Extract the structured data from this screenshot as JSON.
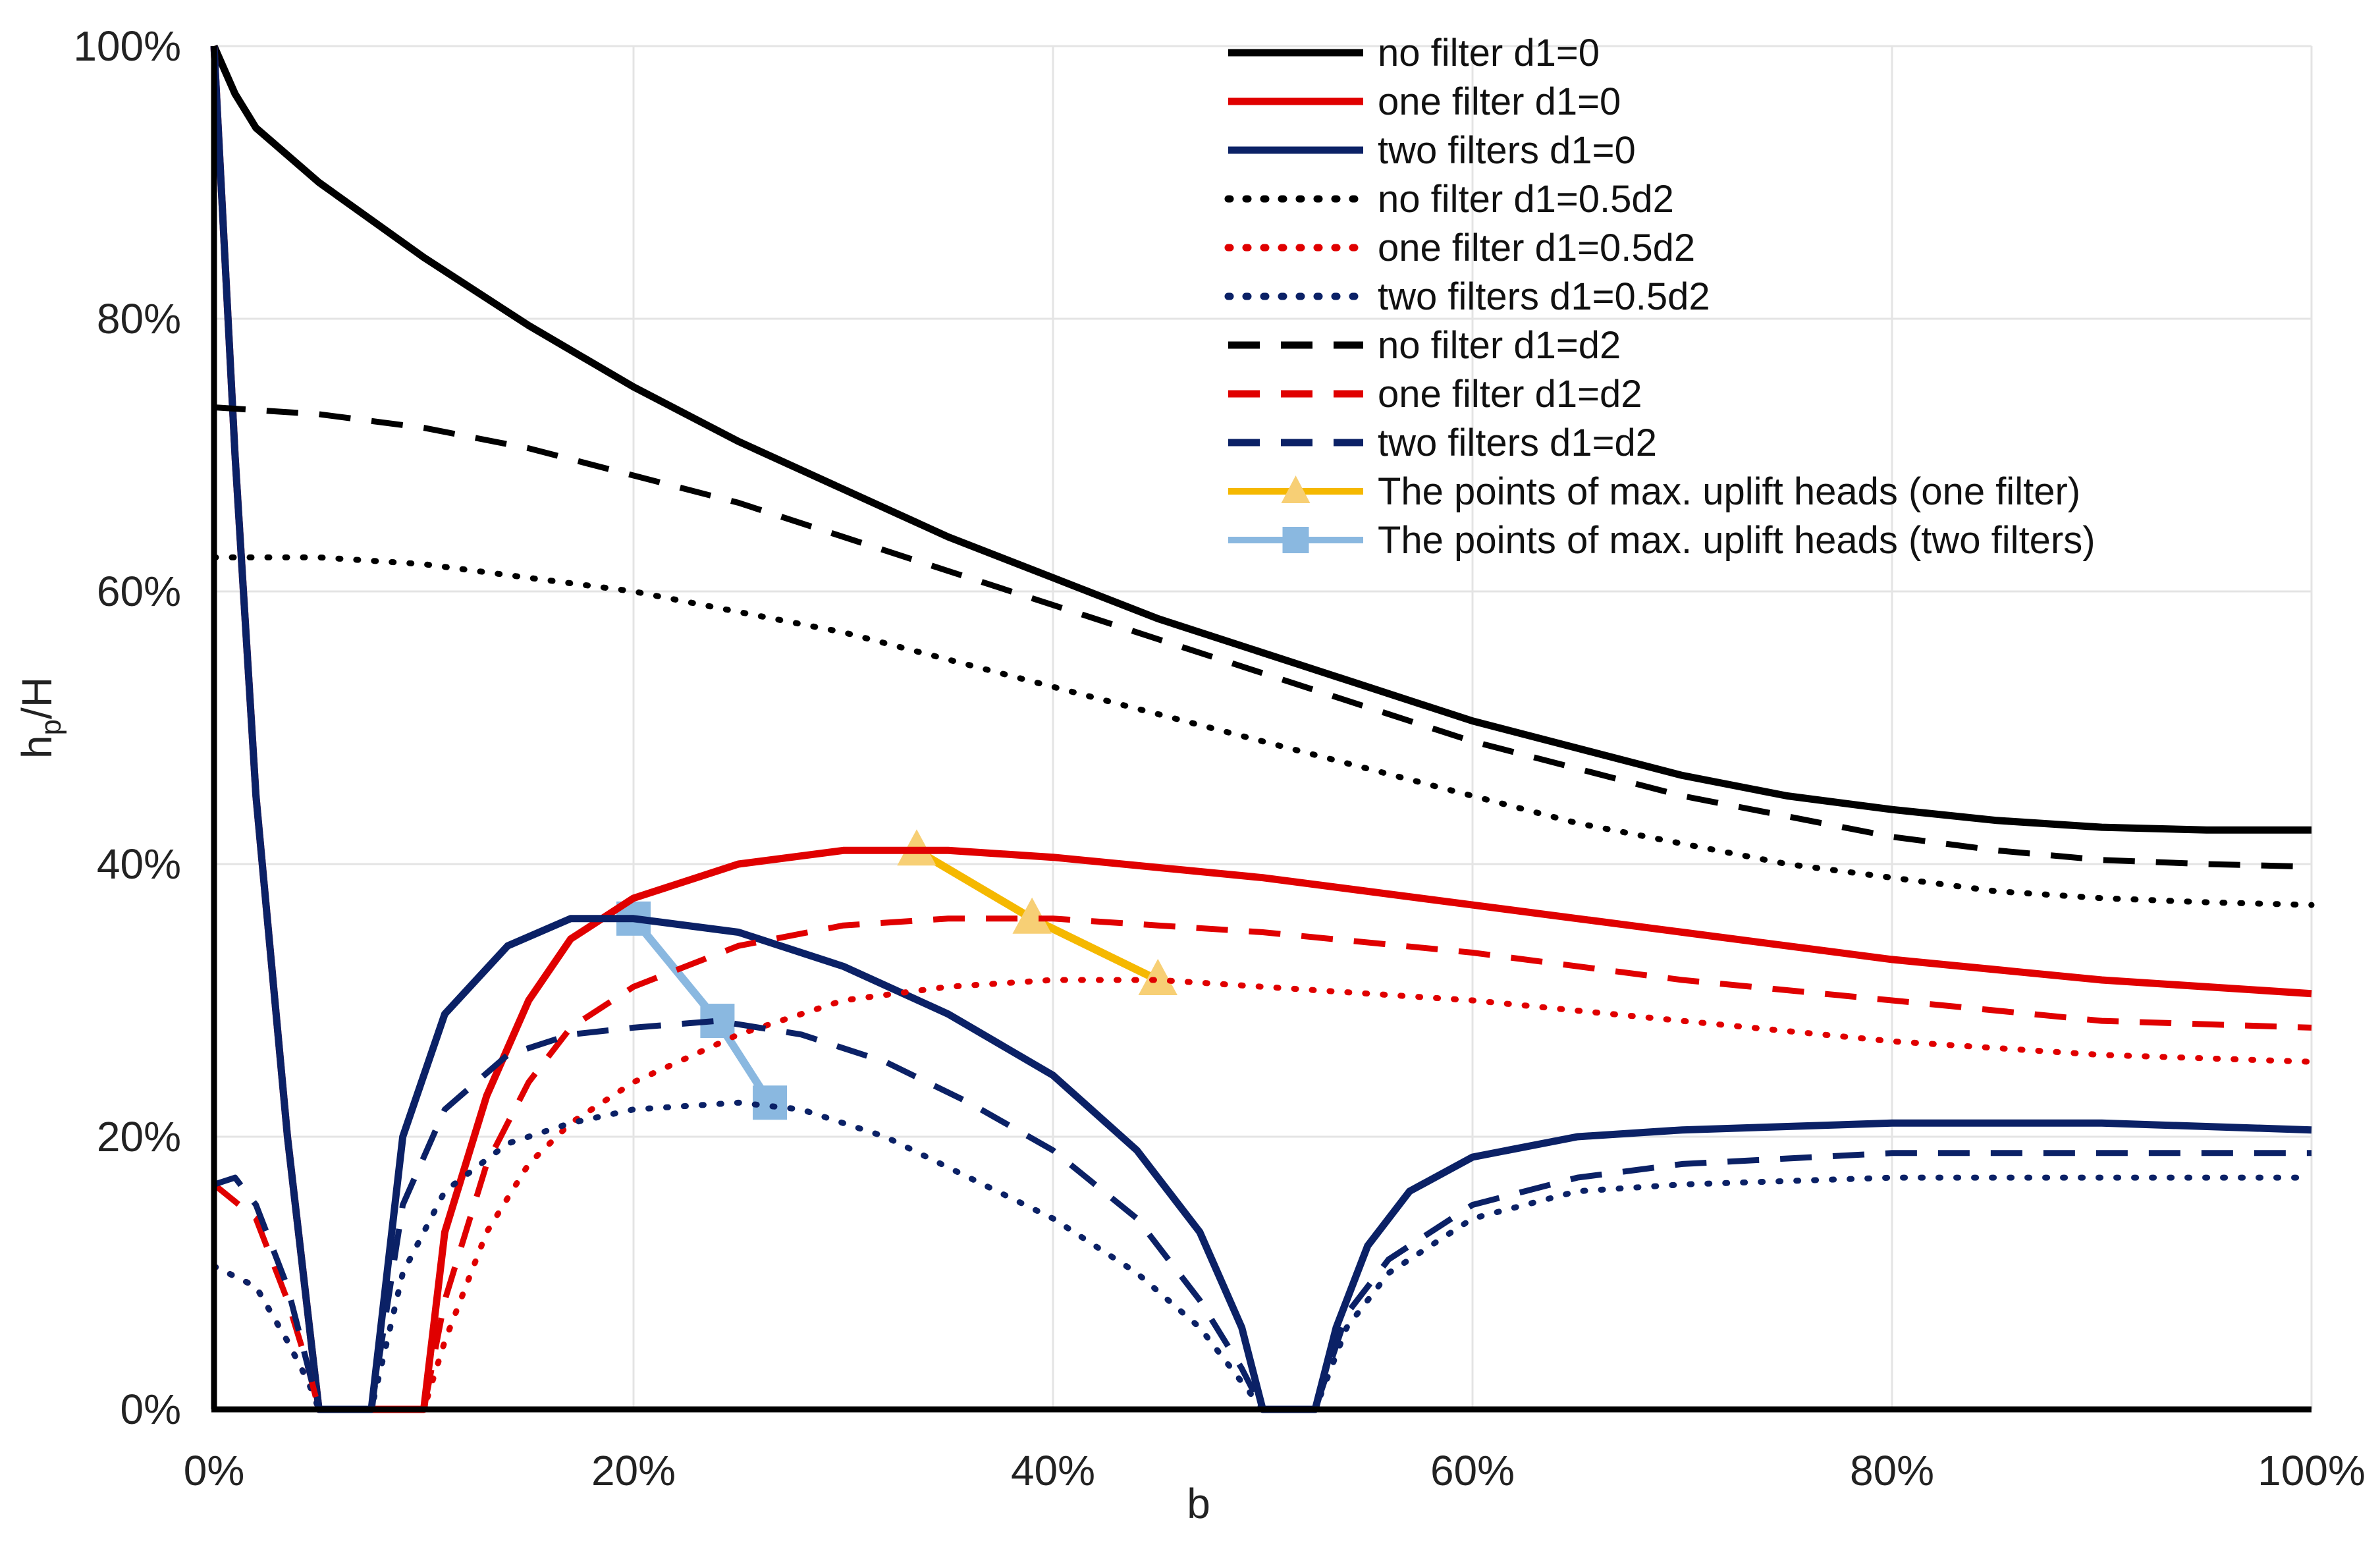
{
  "chart_data": {
    "type": "line",
    "title": "",
    "xlabel": "b",
    "ylabel": "hp/H",
    "ylabel_main": "h",
    "ylabel_sub": "p",
    "ylabel_tail": "/H",
    "xlim": [
      0,
      1
    ],
    "ylim": [
      0,
      1
    ],
    "x_ticks": [
      0,
      0.2,
      0.4,
      0.6,
      0.8,
      1.0
    ],
    "x_tick_labels": [
      "0%",
      "20%",
      "40%",
      "60%",
      "80%",
      "100%"
    ],
    "y_ticks": [
      0,
      0.2,
      0.4,
      0.6,
      0.8,
      1.0
    ],
    "y_tick_labels": [
      "0%",
      "20%",
      "40%",
      "60%",
      "80%",
      "100%"
    ],
    "grid": "horizontal and vertical, light",
    "legend_position": "top-right",
    "series": [
      {
        "name": "no filter d1=0",
        "color": "#000000",
        "style": "solid",
        "marker": "none",
        "x": [
          0,
          0.01,
          0.02,
          0.05,
          0.1,
          0.15,
          0.2,
          0.25,
          0.3,
          0.35,
          0.4,
          0.45,
          0.5,
          0.55,
          0.6,
          0.65,
          0.7,
          0.75,
          0.8,
          0.85,
          0.9,
          0.95,
          1.0
        ],
        "y": [
          1.0,
          0.965,
          0.94,
          0.9,
          0.845,
          0.795,
          0.75,
          0.71,
          0.675,
          0.64,
          0.61,
          0.58,
          0.555,
          0.53,
          0.505,
          0.485,
          0.465,
          0.45,
          0.44,
          0.432,
          0.427,
          0.425,
          0.425
        ]
      },
      {
        "name": "one filter d1=0",
        "color": "#e00000",
        "style": "solid",
        "marker": "none",
        "x": [
          0,
          0.01,
          0.02,
          0.035,
          0.05,
          0.06,
          0.08,
          0.1,
          0.11,
          0.13,
          0.15,
          0.17,
          0.2,
          0.25,
          0.3,
          0.35,
          0.4,
          0.5,
          0.6,
          0.7,
          0.8,
          0.9,
          1.0
        ],
        "y": [
          1.0,
          0.7,
          0.45,
          0.2,
          0.0,
          0.0,
          0.0,
          0.0,
          0.13,
          0.23,
          0.3,
          0.345,
          0.375,
          0.4,
          0.41,
          0.41,
          0.405,
          0.39,
          0.37,
          0.35,
          0.33,
          0.315,
          0.305
        ]
      },
      {
        "name": "two filters d1=0",
        "color": "#0b2166",
        "style": "solid",
        "marker": "none",
        "x": [
          0,
          0.01,
          0.02,
          0.035,
          0.05,
          0.07,
          0.075,
          0.09,
          0.11,
          0.14,
          0.17,
          0.2,
          0.25,
          0.3,
          0.35,
          0.4,
          0.44,
          0.47,
          0.49,
          0.5,
          0.525,
          0.535,
          0.55,
          0.57,
          0.6,
          0.65,
          0.7,
          0.8,
          0.9,
          1.0
        ],
        "y": [
          1.0,
          0.7,
          0.45,
          0.2,
          0.0,
          0.0,
          0.0,
          0.2,
          0.29,
          0.34,
          0.36,
          0.36,
          0.35,
          0.325,
          0.29,
          0.245,
          0.19,
          0.13,
          0.06,
          0.0,
          0.0,
          0.06,
          0.12,
          0.16,
          0.185,
          0.2,
          0.205,
          0.21,
          0.21,
          0.205
        ]
      },
      {
        "name": "no filter d1=0.5d2",
        "color": "#000000",
        "style": "dotted",
        "marker": "none",
        "x": [
          0,
          0.05,
          0.1,
          0.15,
          0.2,
          0.25,
          0.3,
          0.35,
          0.4,
          0.45,
          0.5,
          0.55,
          0.6,
          0.65,
          0.7,
          0.75,
          0.8,
          0.85,
          0.9,
          0.95,
          1.0
        ],
        "y": [
          0.625,
          0.625,
          0.62,
          0.61,
          0.6,
          0.585,
          0.57,
          0.55,
          0.53,
          0.51,
          0.49,
          0.47,
          0.45,
          0.43,
          0.415,
          0.4,
          0.39,
          0.38,
          0.375,
          0.372,
          0.37
        ]
      },
      {
        "name": "one filter d1=0.5d2",
        "color": "#e00000",
        "style": "dotted",
        "marker": "none",
        "x": [
          0,
          0.02,
          0.035,
          0.045,
          0.05,
          0.1,
          0.11,
          0.13,
          0.15,
          0.17,
          0.2,
          0.25,
          0.3,
          0.35,
          0.4,
          0.45,
          0.5,
          0.6,
          0.7,
          0.8,
          0.9,
          1.0
        ],
        "y": [
          0.105,
          0.09,
          0.05,
          0.02,
          0.0,
          0.0,
          0.05,
          0.13,
          0.18,
          0.21,
          0.24,
          0.275,
          0.3,
          0.31,
          0.315,
          0.315,
          0.31,
          0.3,
          0.285,
          0.27,
          0.26,
          0.255
        ]
      },
      {
        "name": "two filters d1=0.5d2",
        "color": "#0b2166",
        "style": "dotted",
        "marker": "none",
        "x": [
          0,
          0.02,
          0.035,
          0.045,
          0.05,
          0.07,
          0.075,
          0.09,
          0.11,
          0.14,
          0.17,
          0.2,
          0.25,
          0.28,
          0.32,
          0.36,
          0.4,
          0.44,
          0.47,
          0.49,
          0.5,
          0.525,
          0.54,
          0.56,
          0.6,
          0.65,
          0.7,
          0.8,
          0.9,
          1.0
        ],
        "y": [
          0.105,
          0.09,
          0.05,
          0.02,
          0.0,
          0.0,
          0.0,
          0.1,
          0.16,
          0.195,
          0.21,
          0.22,
          0.225,
          0.22,
          0.2,
          0.17,
          0.14,
          0.1,
          0.06,
          0.02,
          0.0,
          0.0,
          0.06,
          0.1,
          0.14,
          0.16,
          0.165,
          0.17,
          0.17,
          0.17
        ]
      },
      {
        "name": "no filter d1=d2",
        "color": "#000000",
        "style": "dashed",
        "marker": "none",
        "x": [
          0,
          0.05,
          0.1,
          0.15,
          0.2,
          0.25,
          0.3,
          0.35,
          0.4,
          0.45,
          0.5,
          0.55,
          0.6,
          0.65,
          0.7,
          0.75,
          0.8,
          0.85,
          0.9,
          0.95,
          1.0
        ],
        "y": [
          0.735,
          0.73,
          0.72,
          0.705,
          0.685,
          0.665,
          0.64,
          0.615,
          0.59,
          0.565,
          0.54,
          0.515,
          0.49,
          0.47,
          0.45,
          0.435,
          0.42,
          0.41,
          0.403,
          0.4,
          0.398
        ]
      },
      {
        "name": "one filter d1=d2",
        "color": "#e00000",
        "style": "dashed",
        "marker": "none",
        "x": [
          0,
          0.02,
          0.035,
          0.045,
          0.05,
          0.1,
          0.11,
          0.13,
          0.15,
          0.17,
          0.2,
          0.25,
          0.3,
          0.35,
          0.4,
          0.45,
          0.5,
          0.6,
          0.7,
          0.8,
          0.9,
          1.0
        ],
        "y": [
          0.165,
          0.14,
          0.08,
          0.03,
          0.0,
          0.0,
          0.08,
          0.18,
          0.24,
          0.28,
          0.31,
          0.34,
          0.355,
          0.36,
          0.36,
          0.355,
          0.35,
          0.335,
          0.315,
          0.3,
          0.285,
          0.28
        ]
      },
      {
        "name": "two filters d1=d2",
        "color": "#0b2166",
        "style": "dashed",
        "marker": "none",
        "x": [
          0,
          0.01,
          0.02,
          0.035,
          0.045,
          0.05,
          0.07,
          0.075,
          0.09,
          0.11,
          0.14,
          0.17,
          0.2,
          0.24,
          0.28,
          0.32,
          0.36,
          0.4,
          0.44,
          0.47,
          0.49,
          0.5,
          0.525,
          0.54,
          0.56,
          0.6,
          0.65,
          0.7,
          0.8,
          0.9,
          1.0
        ],
        "y": [
          0.165,
          0.17,
          0.15,
          0.09,
          0.03,
          0.0,
          0.0,
          0.0,
          0.15,
          0.22,
          0.26,
          0.275,
          0.28,
          0.285,
          0.275,
          0.255,
          0.225,
          0.19,
          0.14,
          0.08,
          0.03,
          0.0,
          0.0,
          0.07,
          0.11,
          0.15,
          0.17,
          0.18,
          0.188,
          0.188,
          0.188
        ]
      },
      {
        "name": "The points of max. uplift heads (one filter)",
        "color": "#f5b800",
        "style": "solid",
        "marker": "triangle",
        "x": [
          0.335,
          0.39,
          0.45
        ],
        "y": [
          0.41,
          0.36,
          0.315
        ]
      },
      {
        "name": "The points of max. uplift heads (two filters)",
        "color": "#8ab8e0",
        "style": "solid",
        "marker": "square",
        "x": [
          0.2,
          0.24,
          0.265
        ],
        "y": [
          0.36,
          0.285,
          0.225
        ]
      }
    ]
  }
}
